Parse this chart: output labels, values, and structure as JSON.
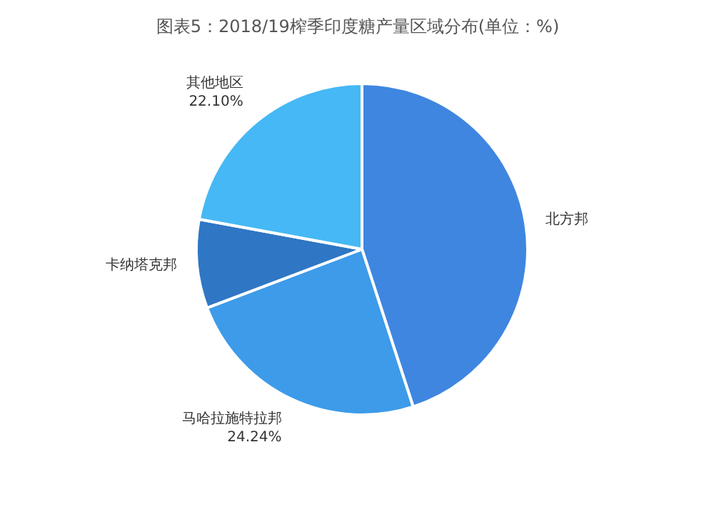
{
  "chart_data": {
    "type": "pie",
    "title": "图表5：2018/19榨季印度糖产量区域分布(单位：%)",
    "categories": [
      "北方邦",
      "马哈拉施特拉邦",
      "卡纳塔克邦",
      "其他地区"
    ],
    "values": [
      45.0,
      24.24,
      8.66,
      22.1
    ],
    "value_labels": [
      null,
      "24.24%",
      null,
      "22.10%"
    ],
    "colors": [
      "#3f86e0",
      "#3d9be9",
      "#2f76c4",
      "#45b8f5"
    ]
  }
}
